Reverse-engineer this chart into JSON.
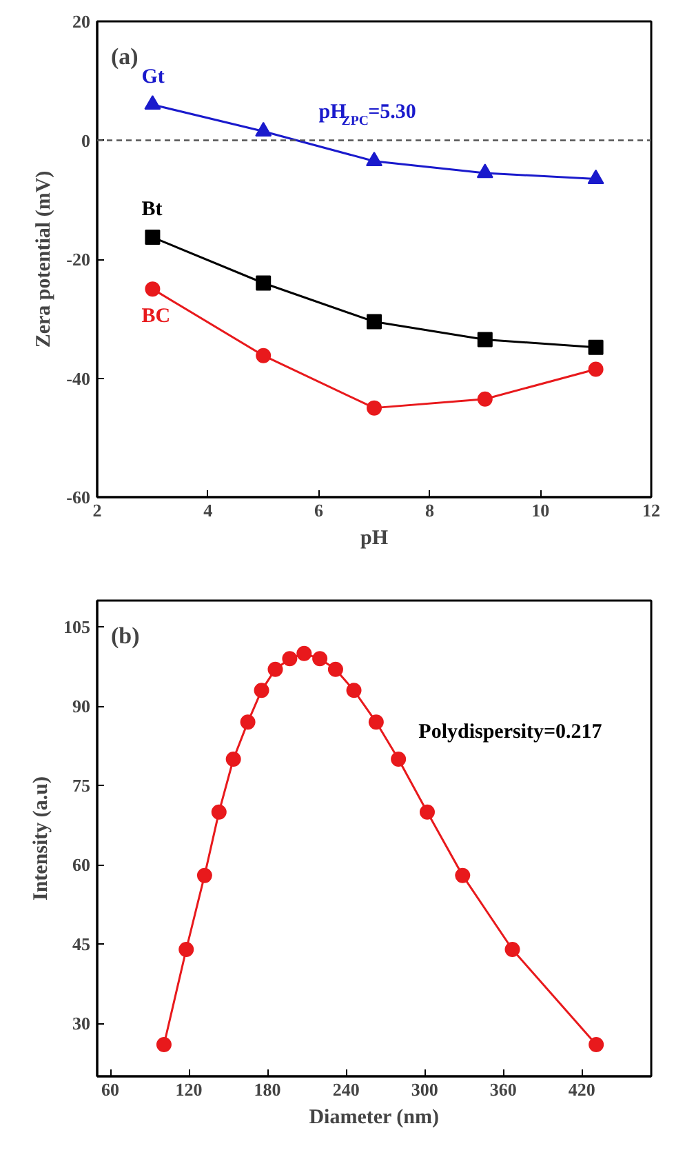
{
  "chart_data": [
    {
      "type": "line",
      "title": "(a)",
      "xlabel": "pH",
      "ylabel": "Zera potential (mV)",
      "x": [
        3,
        5,
        7,
        9,
        11
      ],
      "xlim": [
        2,
        12
      ],
      "xticks": [
        2,
        4,
        6,
        8,
        10,
        12
      ],
      "ylim": [
        -60,
        20
      ],
      "yticks": [
        -60,
        -40,
        -20,
        0,
        20
      ],
      "grid": false,
      "marker": "circle",
      "line_style": "solid",
      "series": [
        {
          "name": "Gt",
          "color": "#1a1acc",
          "marker": "triangle",
          "values": [
            6,
            1.5,
            -3.5,
            -5.5,
            -6.5
          ]
        },
        {
          "name": "Bt",
          "color": "#000000",
          "marker": "square",
          "values": [
            -16.3,
            -24,
            -30.5,
            -33.5,
            -34.8
          ]
        },
        {
          "name": "BC",
          "color": "#e8191c",
          "marker": "circle",
          "values": [
            -25,
            -36.2,
            -45,
            -43.5,
            -38.5
          ]
        }
      ],
      "ref_lines": [
        {
          "axis": "y",
          "value": 0,
          "color": "#555555",
          "line_style": "dashed"
        }
      ],
      "annotations": [
        "pH$_{ZPC}$=5.30"
      ]
    },
    {
      "type": "line",
      "title": "(b)",
      "xlabel": "Diameter (nm)",
      "ylabel": "Intensity (a.u)",
      "xlim": [
        50,
        473
      ],
      "xticks": [
        60,
        120,
        180,
        240,
        300,
        360,
        420
      ],
      "ylim": [
        20,
        110
      ],
      "yticks": [
        30,
        45,
        60,
        75,
        90,
        105
      ],
      "grid": false,
      "marker": "circle",
      "line_style": "solid",
      "series": [
        {
          "color": "#e8191c",
          "x": [
            101,
            118,
            132,
            143,
            154,
            165,
            175.5,
            186,
            197,
            208,
            220,
            232,
            246,
            263,
            280,
            302,
            329,
            367,
            431
          ],
          "values": [
            26,
            44,
            58,
            70,
            80,
            87,
            93,
            97,
            99,
            100,
            99,
            97,
            93,
            87,
            80,
            70,
            58,
            44,
            26
          ]
        }
      ],
      "annotations": [
        "Polydispersity=0.217"
      ]
    }
  ]
}
